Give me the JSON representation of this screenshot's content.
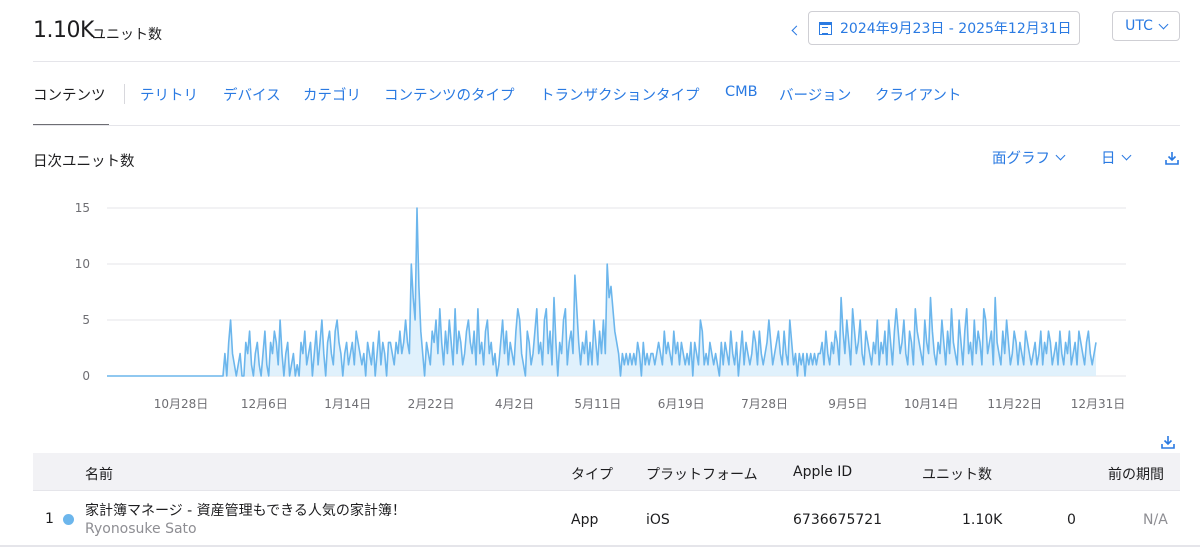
{
  "summary": {
    "total_value": "1.10K",
    "total_label": "ユニット数"
  },
  "date_range": {
    "label": "2024年9月23日 - 2025年12月31日"
  },
  "timezone": {
    "selected": "UTC"
  },
  "tabs": [
    {
      "label": "コンテンツ",
      "active": true
    },
    {
      "label": "テリトリ"
    },
    {
      "label": "デバイス"
    },
    {
      "label": "カテゴリ"
    },
    {
      "label": "コンテンツのタイプ"
    },
    {
      "label": "トランザクションタイプ"
    },
    {
      "label": "CMB"
    },
    {
      "label": "バージョン"
    },
    {
      "label": "クライアント"
    }
  ],
  "chart_panel": {
    "title": "日次ユニット数",
    "chart_type": "面グラフ",
    "interval": "日"
  },
  "chart_data": {
    "type": "area",
    "title": "日次ユニット数",
    "xlabel": "",
    "ylabel": "",
    "ylim": [
      0,
      15
    ],
    "yticks": [
      "0",
      "5",
      "10",
      "15"
    ],
    "xticks": [
      "10月28日",
      "12月6日",
      "1月14日",
      "2月22日",
      "4月2日",
      "5月11日",
      "6月19日",
      "7月28日",
      "9月5日",
      "10月14日",
      "11月22日",
      "12月31日"
    ],
    "grid": true,
    "colors": {
      "line": "#6cb6ec",
      "fill": "#dbeefb"
    },
    "x_start": "2024-09-23",
    "x_end": "2025-12-31",
    "series": [
      {
        "values": [
          0,
          0,
          0,
          0,
          0,
          0,
          0,
          0,
          0,
          0,
          0,
          0,
          0,
          0,
          0,
          0,
          0,
          0,
          0,
          0,
          0,
          0,
          0,
          0,
          0,
          0,
          0,
          0,
          0,
          0,
          0,
          0,
          0,
          0,
          0,
          0,
          0,
          0,
          0,
          0,
          0,
          0,
          0,
          0,
          0,
          0,
          0,
          0,
          0,
          0,
          0,
          0,
          0,
          0,
          0,
          0,
          0,
          0,
          0,
          0,
          0,
          0,
          2,
          0,
          3,
          5,
          2,
          1,
          0,
          1,
          2,
          0,
          0,
          3,
          2,
          4,
          1,
          0,
          2,
          3,
          1,
          0,
          2,
          4,
          1,
          0,
          3,
          2,
          4,
          3,
          1,
          5,
          2,
          0,
          2,
          3,
          0,
          1,
          2,
          0,
          1,
          0,
          3,
          2,
          4,
          1,
          2,
          3,
          0,
          2,
          4,
          1,
          3,
          5,
          2,
          0,
          3,
          4,
          2,
          1,
          4,
          5,
          3,
          2,
          0,
          2,
          3,
          1,
          2,
          3,
          1,
          4,
          3,
          2,
          1,
          2,
          0,
          3,
          2,
          1,
          3,
          0,
          2,
          4,
          1,
          3,
          2,
          0,
          3,
          3,
          2,
          1,
          3,
          2,
          4,
          2,
          3,
          5,
          3,
          2,
          10,
          7,
          5,
          15,
          8,
          4,
          2,
          0,
          3,
          2,
          1,
          4,
          3,
          5,
          2,
          6,
          3,
          1,
          4,
          2,
          5,
          3,
          1,
          6,
          2,
          4,
          3,
          1,
          2,
          4,
          5,
          3,
          2,
          4,
          1,
          6,
          2,
          3,
          1,
          4,
          5,
          2,
          3,
          1,
          2,
          0,
          1,
          3,
          5,
          2,
          4,
          1,
          3,
          2,
          1,
          4,
          6,
          5,
          2,
          1,
          0,
          4,
          3,
          1,
          2,
          4,
          6,
          2,
          3,
          1,
          5,
          6,
          2,
          4,
          1,
          7,
          3,
          0,
          3,
          2,
          5,
          6,
          1,
          3,
          4,
          2,
          9,
          6,
          3,
          1,
          3,
          2,
          4,
          1,
          3,
          1,
          5,
          3,
          1,
          4,
          2,
          5,
          2,
          10,
          7,
          8,
          6,
          4,
          3,
          2,
          0,
          2,
          1,
          2,
          1,
          2,
          1,
          2,
          1,
          3,
          2,
          0,
          3,
          1,
          2,
          1,
          2,
          2,
          1,
          2,
          3,
          2,
          1,
          4,
          2,
          3,
          2,
          1,
          4,
          2,
          3,
          1,
          3,
          2,
          1,
          2,
          1,
          3,
          0,
          3,
          2,
          1,
          5,
          4,
          1,
          2,
          1,
          3,
          2,
          1,
          2,
          1,
          0,
          3,
          1,
          3,
          2,
          1,
          4,
          2,
          1,
          3,
          0,
          2,
          4,
          1,
          3,
          2,
          1,
          2,
          4,
          3,
          1,
          4,
          2,
          1,
          2,
          3,
          5,
          3,
          1,
          2,
          3,
          4,
          2,
          1,
          4,
          2,
          1,
          5,
          3,
          1,
          2,
          0,
          2,
          1,
          2,
          0,
          2,
          1,
          2,
          1,
          2,
          1,
          2,
          2,
          3,
          1,
          4,
          2,
          1,
          3,
          2,
          4,
          3,
          1,
          7,
          4,
          2,
          5,
          3,
          1,
          6,
          4,
          2,
          3,
          5,
          2,
          1,
          4,
          3,
          2,
          1,
          3,
          2,
          5,
          1,
          3,
          2,
          4,
          1,
          5,
          3,
          1,
          4,
          6,
          4,
          2,
          3,
          5,
          2,
          1,
          4,
          3,
          1,
          6,
          4,
          3,
          2,
          1,
          5,
          3,
          2,
          7,
          4,
          2,
          1,
          3,
          2,
          5,
          3,
          1,
          4,
          2,
          6,
          3,
          2,
          1,
          5,
          3,
          1,
          4,
          6,
          2,
          3,
          1,
          5,
          2,
          4,
          3,
          1,
          6,
          5,
          2,
          3,
          4,
          1,
          7,
          3,
          2,
          1,
          4,
          2,
          5,
          3,
          1,
          2,
          4,
          3,
          1,
          3,
          2,
          1,
          4,
          3,
          2,
          1,
          2,
          3,
          1,
          2,
          4,
          1,
          3,
          2,
          4,
          3,
          1,
          2,
          3,
          1,
          4,
          2,
          1,
          3,
          2,
          4,
          1,
          2,
          3,
          1,
          4,
          3,
          2,
          1,
          3,
          4,
          2,
          1,
          2,
          3
        ]
      }
    ]
  },
  "table": {
    "columns": [
      "名前",
      "タイプ",
      "プラットフォーム",
      "Apple ID",
      "ユニット数",
      "前の期間"
    ],
    "rows": [
      {
        "rank": "1",
        "name": "家計簿マネージ - 資産管理もできる人気の家計簿！",
        "developer": "Ryonosuke Sato",
        "type": "App",
        "platform": "iOS",
        "apple_id": "6736675721",
        "units": "1.10K",
        "previous": "0",
        "change": "N/A"
      }
    ]
  }
}
